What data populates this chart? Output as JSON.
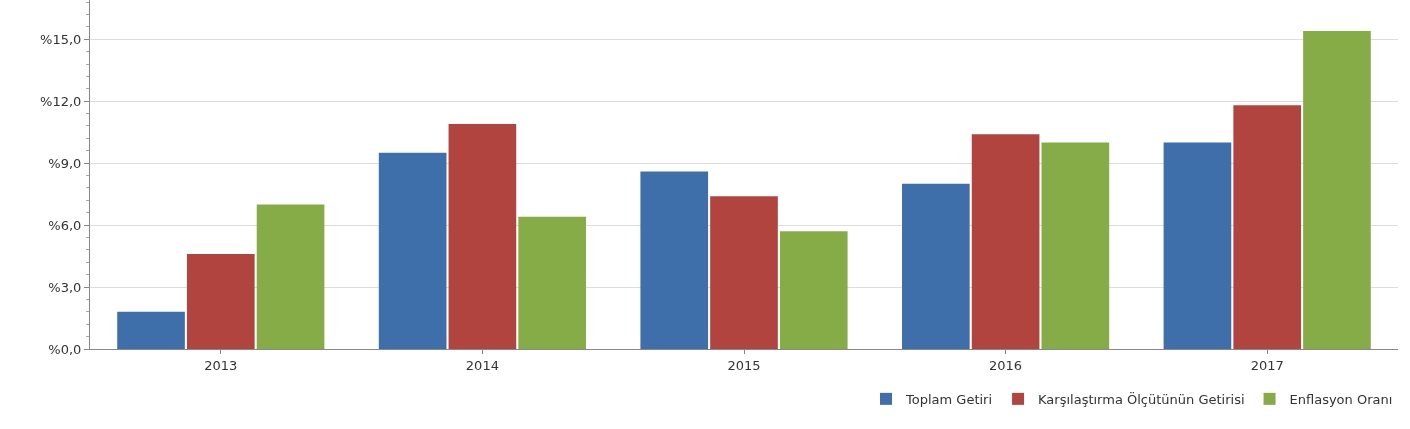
{
  "chart_data": {
    "type": "bar",
    "categories": [
      "2013",
      "2014",
      "2015",
      "2016",
      "2017"
    ],
    "series": [
      {
        "name": "Toplam Getiri",
        "color": "#3f6fab",
        "values": [
          1.8,
          9.5,
          8.6,
          8.0,
          10.0
        ]
      },
      {
        "name": "Karşılaştırma Ölçütünün Getirisi",
        "color": "#b24440",
        "values": [
          4.6,
          10.9,
          7.4,
          10.4,
          11.8
        ]
      },
      {
        "name": "Enflasyon Oranı",
        "color": "#86ac48",
        "values": [
          7.0,
          6.4,
          5.7,
          10.0,
          15.4
        ]
      }
    ],
    "ylim": [
      0,
      16.9
    ],
    "yticks": [
      {
        "value": 0,
        "label": "%0,0"
      },
      {
        "value": 3,
        "label": "%3,0"
      },
      {
        "value": 6,
        "label": "%6,0"
      },
      {
        "value": 9,
        "label": "%9,0"
      },
      {
        "value": 12,
        "label": "%12,0"
      },
      {
        "value": 15,
        "label": "%15,0"
      }
    ],
    "grid": "y",
    "legend": "bottom right"
  }
}
